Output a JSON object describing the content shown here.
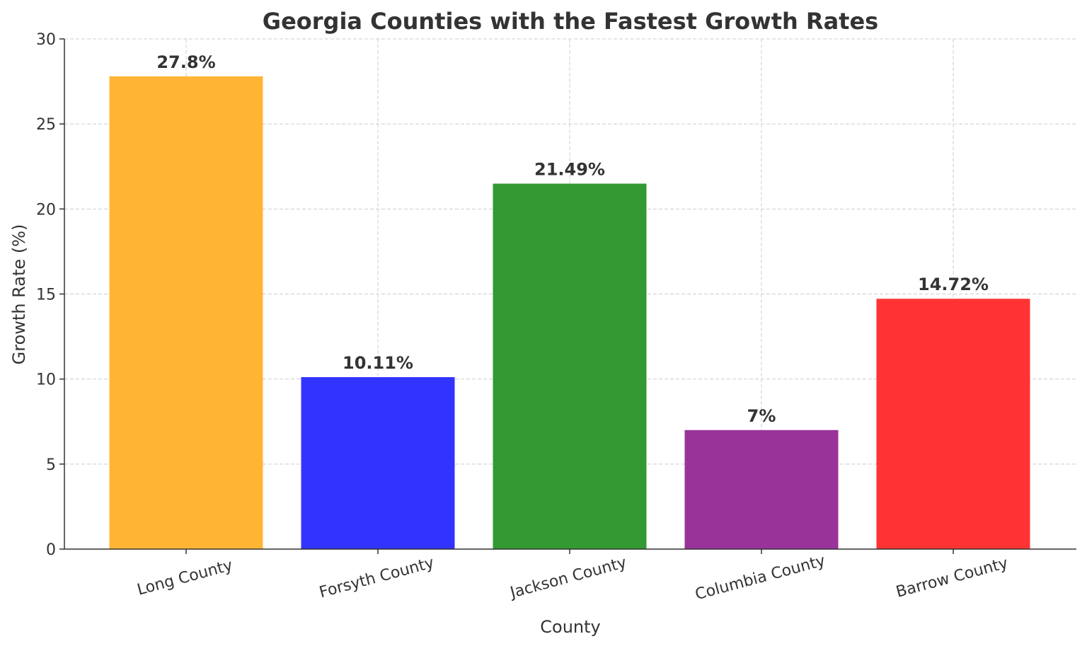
{
  "chart_data": {
    "type": "bar",
    "title": "Georgia Counties with the Fastest Growth Rates",
    "xlabel": "County",
    "ylabel": "Growth Rate (%)",
    "categories": [
      "Long County",
      "Forsyth County",
      "Jackson County",
      "Columbia County",
      "Barrow County"
    ],
    "values": [
      27.8,
      10.11,
      21.49,
      7,
      14.72
    ],
    "data_labels": [
      "27.8%",
      "10.11%",
      "21.49%",
      "7%",
      "14.72%"
    ],
    "colors": [
      "#FFB533",
      "#3333FF",
      "#339933",
      "#993399",
      "#FF3333"
    ],
    "ylim": [
      0,
      30
    ],
    "yticks": [
      0,
      5,
      10,
      15,
      20,
      25,
      30
    ],
    "grid": true,
    "xtick_rotation_deg": 15
  }
}
